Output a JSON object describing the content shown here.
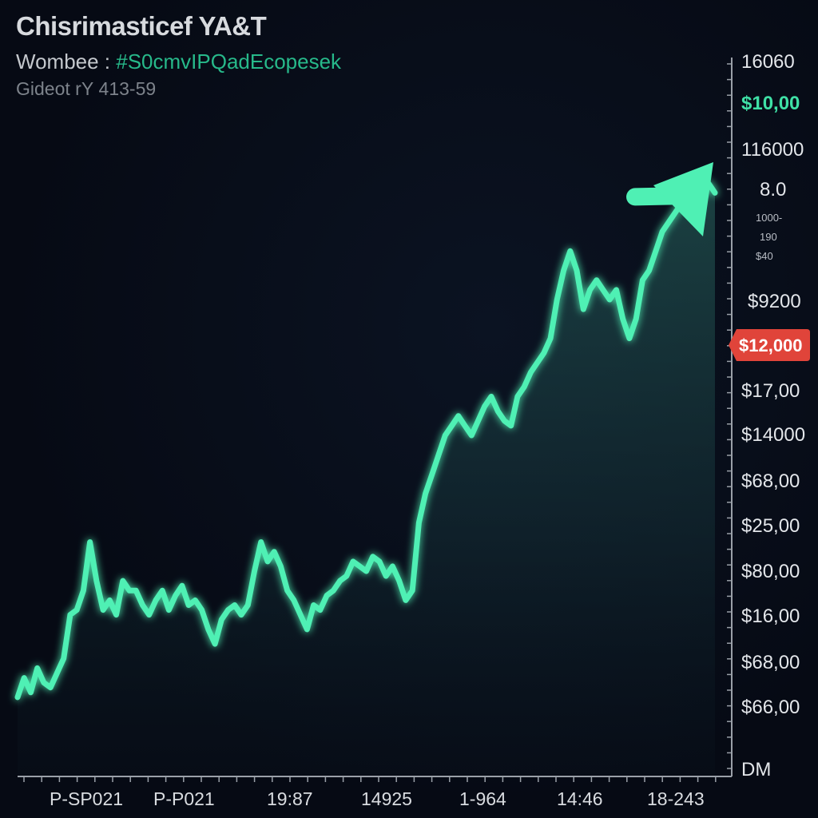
{
  "header": {
    "title": "Chisrimasticef YA&T",
    "subtitle_prefix": "Wombee : ",
    "subtitle_accent": "#S0cmvIPQadEcopesek",
    "note": "Gideot rY 413-59"
  },
  "colors": {
    "background": "#060a14",
    "line": "#4ff0b4",
    "area_top": "#1f4a47",
    "badge": "#e0443a",
    "axis": "#9aa0a8"
  },
  "chart_data": {
    "type": "line",
    "title": "Chisrimasticef YA&T",
    "xlabel": "",
    "ylabel": "",
    "grid": false,
    "x_tick_labels": [
      "P-SP021",
      "P-P021",
      "19:87",
      "14925",
      "1-964",
      "14:46",
      "18-243"
    ],
    "y_tick_labels": [
      {
        "label": "16060",
        "style": "normal"
      },
      {
        "label": "$10,00",
        "style": "green"
      },
      {
        "label": "116000",
        "style": "normal"
      },
      {
        "label": "8.0",
        "style": "normal"
      },
      {
        "label": "1000-",
        "style": "small"
      },
      {
        "label": "190",
        "style": "small"
      },
      {
        "label": "$40",
        "style": "small"
      },
      {
        "label": "$9200",
        "style": "normal"
      },
      {
        "label": "$12,000",
        "style": "badge"
      },
      {
        "label": "$17,00",
        "style": "normal"
      },
      {
        "label": "$14000",
        "style": "normal"
      },
      {
        "label": "$68,00",
        "style": "normal"
      },
      {
        "label": "$25,00",
        "style": "normal"
      },
      {
        "label": "$80,00",
        "style": "normal"
      },
      {
        "label": "$16,00",
        "style": "normal"
      },
      {
        "label": "$68,00",
        "style": "normal"
      },
      {
        "label": "$66,00",
        "style": "normal"
      },
      {
        "label": "DM",
        "style": "normal"
      }
    ],
    "series": [
      {
        "values": [
          16,
          20,
          17,
          22,
          19,
          18,
          21,
          24,
          33,
          34,
          38,
          48,
          40,
          34,
          36,
          33,
          40,
          38,
          38,
          35,
          33,
          36,
          38,
          34,
          37,
          39,
          35,
          36,
          34,
          30,
          27,
          32,
          34,
          35,
          33,
          35,
          42,
          48,
          44,
          46,
          43,
          38,
          36,
          33,
          30,
          35,
          34,
          37,
          38,
          40,
          41,
          44,
          43,
          42,
          45,
          44,
          41,
          43,
          40,
          36,
          38,
          52,
          58,
          62,
          66,
          70,
          72,
          74,
          72,
          70,
          73,
          76,
          78,
          75,
          73,
          72,
          78,
          80,
          83,
          85,
          87,
          90,
          98,
          104,
          108,
          104,
          96,
          100,
          102,
          100,
          98,
          100,
          94,
          90,
          94,
          102,
          104,
          108,
          112,
          114,
          116,
          118,
          120,
          116,
          120,
          122,
          120
        ]
      }
    ],
    "y_data_range": [
      0,
      140
    ],
    "trend_arrow": true,
    "legend": "none"
  }
}
